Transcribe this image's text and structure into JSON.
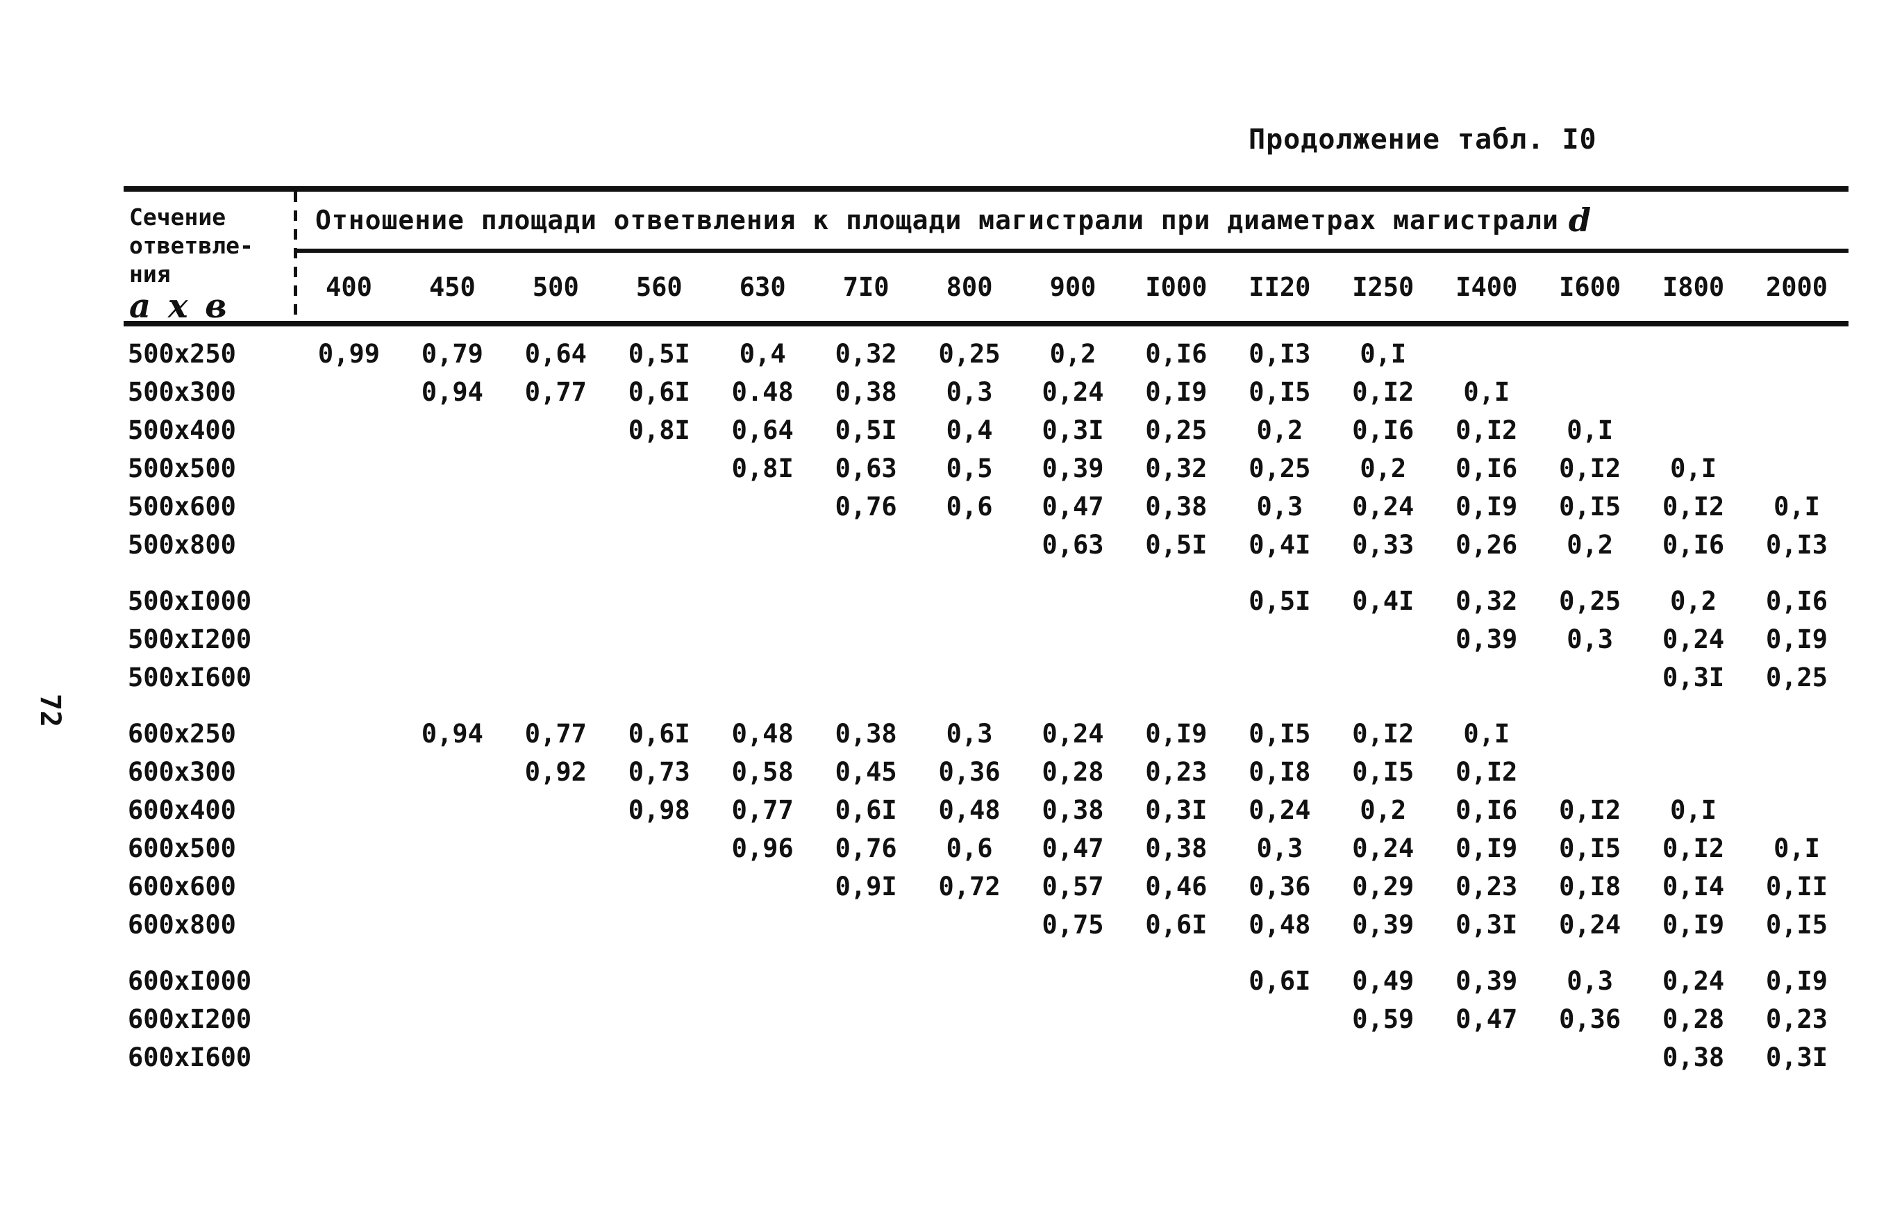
{
  "page": {
    "caption": "Продолжение табл. I0",
    "page_number": "72"
  },
  "table": {
    "corner": {
      "line1": "Сечение",
      "line2": "ответвле-",
      "line3": "ния",
      "formula": "а х в"
    },
    "span_header": "Отношение площади ответвления к площади магистрали при диаметрах магистрали",
    "span_header_var": "d",
    "columns": [
      "400",
      "450",
      "500",
      "560",
      "630",
      "7I0",
      "800",
      "900",
      "I000",
      "II20",
      "I250",
      "I400",
      "I600",
      "I800",
      "2000"
    ],
    "rows": [
      {
        "label": "500x250",
        "gap": false,
        "values": [
          "0,99",
          "0,79",
          "0,64",
          "0,5I",
          "0,4",
          "0,32",
          "0,25",
          "0,2",
          "0,I6",
          "0,I3",
          "0,I",
          "",
          "",
          "",
          ""
        ]
      },
      {
        "label": "500x300",
        "gap": false,
        "values": [
          "",
          "0,94",
          "0,77",
          "0,6I",
          "0.48",
          "0,38",
          "0,3",
          "0,24",
          "0,I9",
          "0,I5",
          "0,I2",
          "0,I",
          "",
          "",
          ""
        ]
      },
      {
        "label": "500x400",
        "gap": false,
        "values": [
          "",
          "",
          "",
          "0,8I",
          "0,64",
          "0,5I",
          "0,4",
          "0,3I",
          "0,25",
          "0,2",
          "0,I6",
          "0,I2",
          "0,I",
          "",
          ""
        ]
      },
      {
        "label": "500x500",
        "gap": false,
        "values": [
          "",
          "",
          "",
          "",
          "0,8I",
          "0,63",
          "0,5",
          "0,39",
          "0,32",
          "0,25",
          "0,2",
          "0,I6",
          "0,I2",
          "0,I",
          ""
        ]
      },
      {
        "label": "500x600",
        "gap": false,
        "values": [
          "",
          "",
          "",
          "",
          "",
          "0,76",
          "0,6",
          "0,47",
          "0,38",
          "0,3",
          "0,24",
          "0,I9",
          "0,I5",
          "0,I2",
          "0,I"
        ]
      },
      {
        "label": "500x800",
        "gap": false,
        "values": [
          "",
          "",
          "",
          "",
          "",
          "",
          "",
          "0,63",
          "0,5I",
          "0,4I",
          "0,33",
          "0,26",
          "0,2",
          "0,I6",
          "0,I3"
        ]
      },
      {
        "label": "500xI000",
        "gap": true,
        "values": [
          "",
          "",
          "",
          "",
          "",
          "",
          "",
          "",
          "",
          "0,5I",
          "0,4I",
          "0,32",
          "0,25",
          "0,2",
          "0,I6"
        ]
      },
      {
        "label": "500xI200",
        "gap": false,
        "values": [
          "",
          "",
          "",
          "",
          "",
          "",
          "",
          "",
          "",
          "",
          "",
          "0,39",
          "0,3",
          "0,24",
          "0,I9"
        ]
      },
      {
        "label": "500xI600",
        "gap": false,
        "values": [
          "",
          "",
          "",
          "",
          "",
          "",
          "",
          "",
          "",
          "",
          "",
          "",
          "",
          "0,3I",
          "0,25"
        ]
      },
      {
        "label": "600x250",
        "gap": true,
        "values": [
          "",
          "0,94",
          "0,77",
          "0,6I",
          "0,48",
          "0,38",
          "0,3",
          "0,24",
          "0,I9",
          "0,I5",
          "0,I2",
          "0,I",
          "",
          "",
          ""
        ]
      },
      {
        "label": "600x300",
        "gap": false,
        "values": [
          "",
          "",
          "0,92",
          "0,73",
          "0,58",
          "0,45",
          "0,36",
          "0,28",
          "0,23",
          "0,I8",
          "0,I5",
          "0,I2",
          "",
          "",
          ""
        ]
      },
      {
        "label": "600x400",
        "gap": false,
        "values": [
          "",
          "",
          "",
          "0,98",
          "0,77",
          "0,6I",
          "0,48",
          "0,38",
          "0,3I",
          "0,24",
          "0,2",
          "0,I6",
          "0,I2",
          "0,I",
          ""
        ]
      },
      {
        "label": "600x500",
        "gap": false,
        "values": [
          "",
          "",
          "",
          "",
          "0,96",
          "0,76",
          "0,6",
          "0,47",
          "0,38",
          "0,3",
          "0,24",
          "0,I9",
          "0,I5",
          "0,I2",
          "0,I"
        ]
      },
      {
        "label": "600x600",
        "gap": false,
        "values": [
          "",
          "",
          "",
          "",
          "",
          "0,9I",
          "0,72",
          "0,57",
          "0,46",
          "0,36",
          "0,29",
          "0,23",
          "0,I8",
          "0,I4",
          "0,II"
        ]
      },
      {
        "label": "600x800",
        "gap": false,
        "values": [
          "",
          "",
          "",
          "",
          "",
          "",
          "",
          "0,75",
          "0,6I",
          "0,48",
          "0,39",
          "0,3I",
          "0,24",
          "0,I9",
          "0,I5"
        ]
      },
      {
        "label": "600xI000",
        "gap": true,
        "values": [
          "",
          "",
          "",
          "",
          "",
          "",
          "",
          "",
          "",
          "0,6I",
          "0,49",
          "0,39",
          "0,3",
          "0,24",
          "0,I9"
        ]
      },
      {
        "label": "600xI200",
        "gap": false,
        "values": [
          "",
          "",
          "",
          "",
          "",
          "",
          "",
          "",
          "",
          "",
          "0,59",
          "0,47",
          "0,36",
          "0,28",
          "0,23"
        ]
      },
      {
        "label": "600xI600",
        "gap": false,
        "values": [
          "",
          "",
          "",
          "",
          "",
          "",
          "",
          "",
          "",
          "",
          "",
          "",
          "",
          "0,38",
          "0,3I"
        ]
      }
    ]
  }
}
